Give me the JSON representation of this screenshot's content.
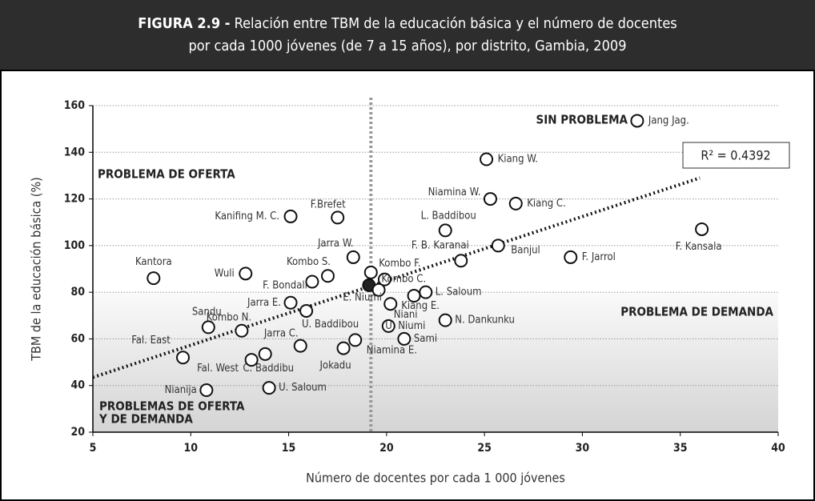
{
  "chart_data": {
    "type": "scatter",
    "title_prefix": "FIGURA 2.9 -",
    "title": [
      "Relación entre TBM de la educación básica y el número de docentes",
      "por cada 1000 jóvenes (de 7 a 15 años), por distrito, Gambia, 2009"
    ],
    "x_label": "Número de docentes por cada 1 000 jóvenes",
    "y_label": "TBM de la educación básica (%)",
    "xlim": [
      5,
      40
    ],
    "xticks": [
      5,
      10,
      15,
      20,
      25,
      30,
      35,
      40
    ],
    "ylim": [
      20,
      160
    ],
    "yticks": [
      20,
      40,
      60,
      80,
      100,
      120,
      140,
      160
    ],
    "grid": true,
    "labels": [
      "Jang Jag.",
      "Kiang W.",
      "Niamina W.",
      "Kiang C.",
      "L. Baddibou",
      "F. Kansala",
      "Banjul",
      "F. B. Karanai",
      "F. Jarrol",
      "Kanifing M. C.",
      "F.Brefet",
      "Jarra W.",
      "Kombo F.",
      "Kombo S.",
      "F. Bondali",
      "Wuli",
      "Kantora",
      "Kombo C.",
      null,
      "E. Niumi",
      "L. Saloum",
      "Kiang E.",
      "Jarra E.",
      "Niani",
      "Kombo N.",
      "U. Baddibou",
      "U. Niumi",
      "N. Dankunku",
      "Sandu",
      "Sami",
      "Niamina E.",
      "Jokadu",
      "Jarra C.",
      "C. Baddibu",
      "Fal. West",
      "Fal. East",
      "Nianija",
      "U. Saloum"
    ],
    "x": [
      32.8,
      25.1,
      25.3,
      26.6,
      23.0,
      36.1,
      25.7,
      23.8,
      29.4,
      15.1,
      17.5,
      18.3,
      19.2,
      17.0,
      16.2,
      12.8,
      8.1,
      19.9,
      19.1,
      19.6,
      22.0,
      21.4,
      15.1,
      20.2,
      12.6,
      15.9,
      20.1,
      23.0,
      10.9,
      20.9,
      18.4,
      17.8,
      15.6,
      13.8,
      13.1,
      9.6,
      10.8,
      14.0
    ],
    "y": [
      153.5,
      137,
      120,
      118,
      106.5,
      107,
      100,
      93.5,
      95,
      112.5,
      112,
      95,
      88.5,
      87,
      84.5,
      88,
      86,
      85.5,
      83,
      81,
      80,
      78.5,
      75.5,
      75,
      63.5,
      72,
      65.5,
      68,
      65,
      60,
      59.5,
      56,
      57,
      53.5,
      51,
      52,
      38,
      39
    ],
    "highlight": 18,
    "color": "#ffffff",
    "highlight_color": "#222222",
    "trendline": {
      "label": "R² = 0.4392",
      "x": [
        5,
        36
      ],
      "y": [
        43.5,
        129
      ]
    },
    "reference_x": 19.2,
    "band_below": 80,
    "annotations": [
      "SIN PROBLEMA",
      "PROBLEMA DE OFERTA",
      "PROBLEMA DE DEMANDA",
      "PROBLEMAS DE OFERTA",
      "Y DE DEMANDA"
    ]
  }
}
